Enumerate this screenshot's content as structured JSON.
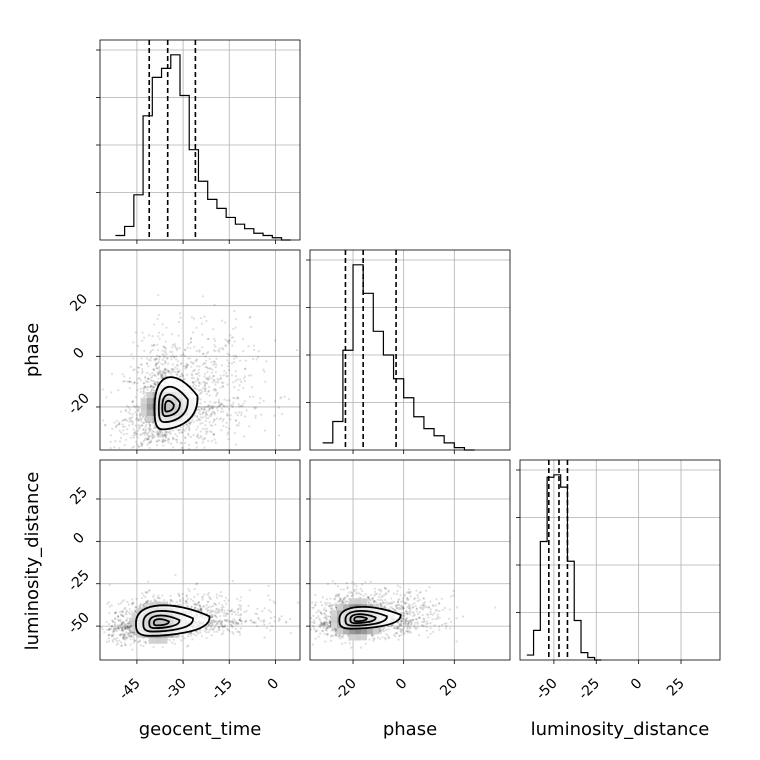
{
  "chart_data": {
    "type": "corner",
    "parameters": [
      "geocent_time",
      "phase",
      "luminosity_distance"
    ],
    "grid": true,
    "ranges": {
      "geocent_time": [
        -57,
        8
      ],
      "phase": [
        -37,
        42
      ],
      "luminosity_distance": [
        -70,
        48
      ]
    },
    "ticks": {
      "geocent_time": [
        "-45",
        "-30",
        "-15",
        "0"
      ],
      "phase": [
        "-20",
        "0",
        "20"
      ],
      "luminosity_distance": [
        "-50",
        "-25",
        "0",
        "25"
      ]
    },
    "quantiles": {
      "geocent_time": [
        -41,
        -35,
        -26
      ],
      "phase": [
        -23,
        -16,
        -3
      ],
      "luminosity_distance": [
        -53,
        -47,
        -42
      ]
    },
    "marginals": {
      "geocent_time": {
        "bin_edges": [
          -52,
          -49,
          -46,
          -43,
          -40,
          -37,
          -34,
          -31,
          -28,
          -25,
          -22,
          -19,
          -16,
          -13,
          -10,
          -7,
          -4,
          -1,
          2,
          5
        ],
        "counts": [
          2,
          6,
          20,
          55,
          72,
          76,
          82,
          64,
          40,
          26,
          18,
          14,
          10,
          7,
          5,
          3,
          2,
          1,
          0
        ]
      },
      "phase": {
        "bin_edges": [
          -32,
          -28,
          -24,
          -20,
          -16,
          -12,
          -8,
          -4,
          0,
          4,
          8,
          12,
          16,
          20,
          24,
          28
        ],
        "counts": [
          3,
          12,
          42,
          78,
          66,
          50,
          40,
          30,
          22,
          14,
          9,
          6,
          3,
          1,
          0
        ]
      },
      "luminosity_distance": {
        "bin_edges": [
          -66,
          -62,
          -58,
          -54,
          -50,
          -46,
          -42,
          -38,
          -34,
          -30,
          -26,
          -22
        ],
        "counts": [
          2,
          12,
          48,
          74,
          75,
          70,
          40,
          16,
          3,
          1,
          0
        ]
      }
    },
    "density_peaks": {
      "phase_vs_geocent_time": {
        "x": -35,
        "y": -20
      },
      "luminosity_distance_vs_geocent_time": {
        "x": -38,
        "y": -48
      },
      "luminosity_distance_vs_phase": {
        "x": -18,
        "y": -46
      }
    }
  }
}
